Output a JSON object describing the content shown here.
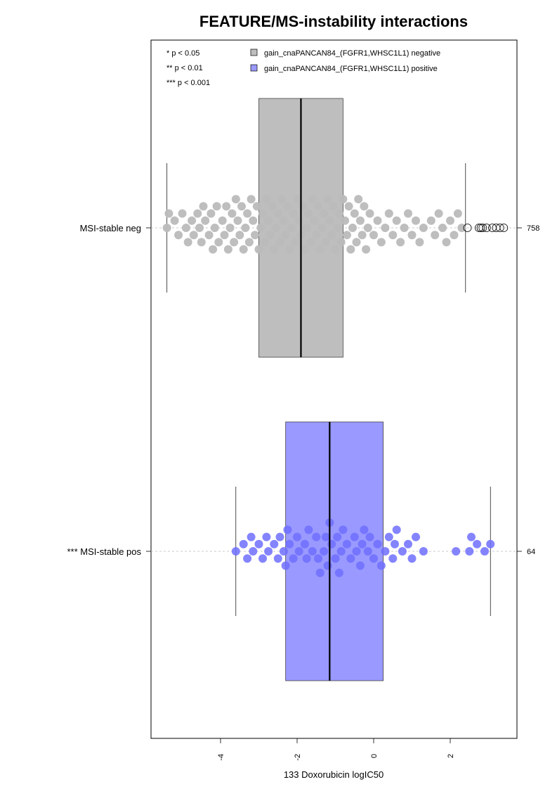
{
  "chart_data": {
    "type": "boxplot-beeswarm",
    "title": "FEATURE/MS-instability interactions",
    "xlabel": "133 Doxorubicin logIC50",
    "ylabel": "",
    "xlim": [
      -5.5,
      3.5
    ],
    "x_ticks": [
      -4,
      -2,
      0,
      2
    ],
    "x_tick_labels": [
      "-4",
      "-2",
      "0",
      "2"
    ],
    "significance_legend": [
      "* p < 0.05",
      "** p < 0.01",
      "*** p < 0.001"
    ],
    "series": [
      {
        "name": "gain_cnaPANCAN84_(FGFR1,WHSC1L1) negative",
        "color": "#bebebe"
      },
      {
        "name": "gain_cnaPANCAN84_(FGFR1,WHSC1L1) positive",
        "color": "#9999ff"
      }
    ],
    "groups": [
      {
        "label": "MSI-stable neg",
        "series": "gain_cnaPANCAN84_(FGFR1,WHSC1L1) negative",
        "n": "758",
        "whisker_low": -5.4,
        "q1": -3.0,
        "median": -1.9,
        "q3": -0.8,
        "whisker_high": 2.4,
        "outliers": [
          2.45,
          2.75,
          2.8,
          2.85,
          2.95,
          3.1,
          3.2,
          3.3,
          3.4
        ],
        "points": [
          -5.4,
          -5.35,
          -5.2,
          -5.1,
          -5.0,
          -4.9,
          -4.85,
          -4.75,
          -4.7,
          -4.6,
          -4.55,
          -4.5,
          -4.45,
          -4.4,
          -4.3,
          -4.25,
          -4.2,
          -4.15,
          -4.1,
          -4.05,
          -3.95,
          -3.9,
          -3.85,
          -3.8,
          -3.75,
          -3.7,
          -3.65,
          -3.6,
          -3.55,
          -3.5,
          -3.45,
          -3.4,
          -3.35,
          -3.3,
          -3.25,
          -3.2,
          -3.15,
          -3.1,
          -3.05,
          -3.0,
          -2.95,
          -2.9,
          -2.85,
          -2.8,
          -2.75,
          -2.7,
          -2.65,
          -2.6,
          -2.55,
          -2.5,
          -2.45,
          -2.4,
          -2.35,
          -2.3,
          -2.25,
          -2.2,
          -2.15,
          -2.1,
          -2.05,
          -2.0,
          -1.95,
          -1.9,
          -1.85,
          -1.8,
          -1.75,
          -1.7,
          -1.65,
          -1.6,
          -1.55,
          -1.5,
          -1.45,
          -1.4,
          -1.35,
          -1.3,
          -1.25,
          -1.2,
          -1.15,
          -1.1,
          -1.05,
          -1.0,
          -0.95,
          -0.9,
          -0.85,
          -0.8,
          -0.75,
          -0.7,
          -0.65,
          -0.6,
          -0.55,
          -0.5,
          -0.45,
          -0.4,
          -0.35,
          -0.3,
          -0.25,
          -0.2,
          -0.15,
          -0.1,
          0.0,
          0.1,
          0.2,
          0.3,
          0.4,
          0.5,
          0.6,
          0.7,
          0.8,
          0.9,
          1.0,
          1.1,
          1.2,
          1.3,
          1.5,
          1.6,
          1.7,
          1.8,
          1.9,
          2.0,
          2.1,
          2.2,
          2.3
        ]
      },
      {
        "label": "*** MSI-stable pos",
        "series": "gain_cnaPANCAN84_(FGFR1,WHSC1L1) positive",
        "n": "64",
        "whisker_low": -3.6,
        "q1": -2.3,
        "median": -1.15,
        "q3": 0.25,
        "whisker_high": 3.05,
        "outliers": [],
        "points": [
          -3.6,
          -3.4,
          -3.3,
          -3.2,
          -3.15,
          -3.0,
          -2.9,
          -2.8,
          -2.75,
          -2.6,
          -2.5,
          -2.45,
          -2.35,
          -2.3,
          -2.25,
          -2.2,
          -2.1,
          -2.0,
          -1.95,
          -1.8,
          -1.75,
          -1.7,
          -1.6,
          -1.5,
          -1.45,
          -1.4,
          -1.3,
          -1.25,
          -1.2,
          -1.15,
          -1.1,
          -1.0,
          -0.95,
          -0.9,
          -0.85,
          -0.8,
          -0.7,
          -0.6,
          -0.5,
          -0.45,
          -0.35,
          -0.3,
          -0.25,
          -0.15,
          -0.1,
          0.0,
          0.1,
          0.2,
          0.3,
          0.4,
          0.5,
          0.55,
          0.6,
          0.75,
          0.9,
          1.0,
          1.1,
          1.3,
          2.15,
          2.5,
          2.55,
          2.7,
          2.9,
          3.05
        ]
      }
    ]
  }
}
